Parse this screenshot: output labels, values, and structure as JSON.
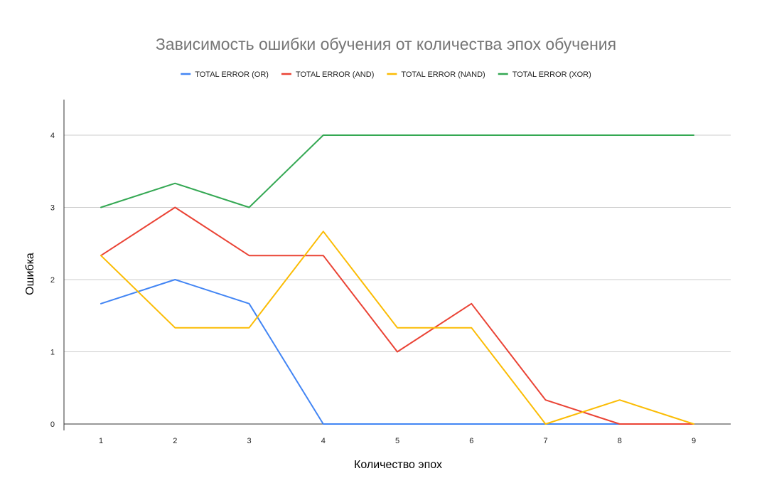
{
  "chart_data": {
    "type": "line",
    "title": "Зависимость ошибки обучения от количества эпох обучения",
    "xlabel": "Количество эпох",
    "ylabel": "Ошибка",
    "categories": [
      "1",
      "2",
      "3",
      "4",
      "5",
      "6",
      "7",
      "8",
      "9"
    ],
    "ylim": [
      0,
      4.5
    ],
    "yticks": [
      0,
      1,
      2,
      3,
      4
    ],
    "ytick_labels": [
      "0",
      "1",
      "2",
      "3",
      "4"
    ],
    "grid": true,
    "legend_position": "top",
    "series": [
      {
        "name": "TOTAL ERROR (OR)",
        "color": "#4285f4",
        "values": [
          1.667,
          2,
          1.667,
          0,
          0,
          0,
          0,
          0,
          0
        ]
      },
      {
        "name": "TOTAL ERROR (AND)",
        "color": "#ea4335",
        "values": [
          2.333,
          3,
          2.333,
          2.333,
          1,
          1.667,
          0.333,
          0,
          0
        ]
      },
      {
        "name": "TOTAL ERROR (NAND)",
        "color": "#fbbc04",
        "values": [
          2.333,
          1.333,
          1.333,
          2.667,
          1.333,
          1.333,
          0,
          0.333,
          0
        ]
      },
      {
        "name": "TOTAL ERROR (XOR)",
        "color": "#34a853",
        "values": [
          3,
          3.333,
          3,
          4,
          4,
          4,
          4,
          4,
          4
        ]
      }
    ]
  }
}
